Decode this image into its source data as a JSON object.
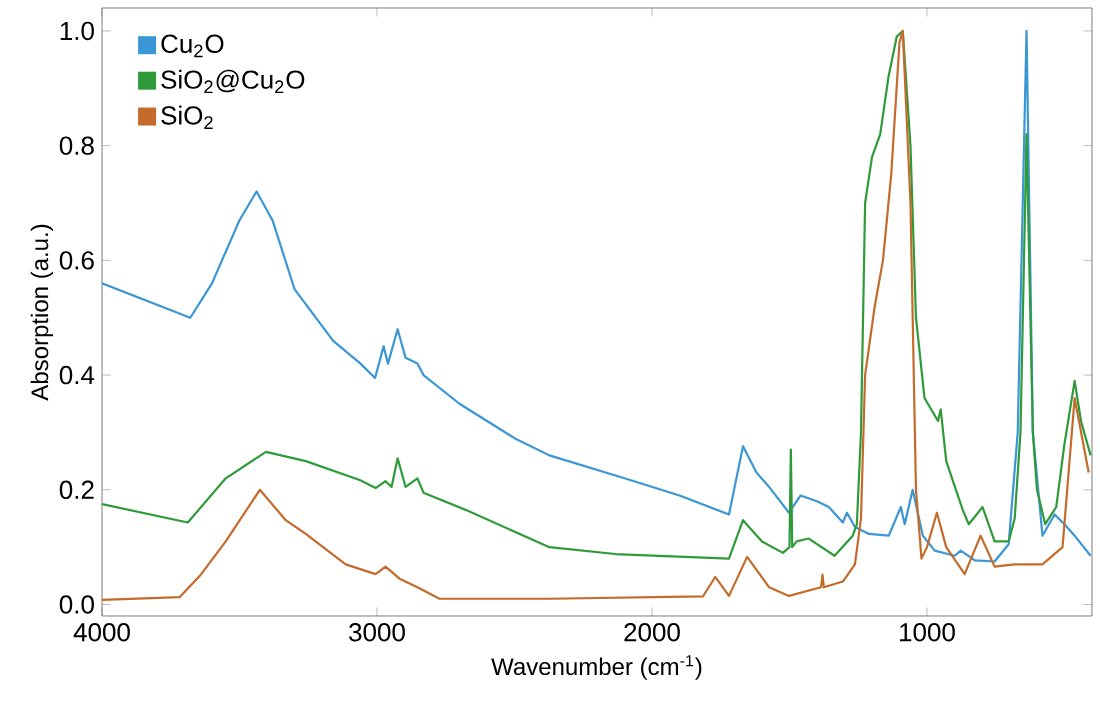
{
  "chart_data": {
    "type": "line",
    "xlabel": "Wavenumber (cm$^{-1}$)",
    "ylabel": "Absorption (a.u.)",
    "xlim": [
      4000,
      400
    ],
    "ylim": [
      -0.02,
      1.04
    ],
    "xticks": [
      4000,
      3000,
      2000,
      1000
    ],
    "yticks": [
      {
        "value": 0,
        "label": "0.0"
      },
      0.2,
      0.4,
      0.6,
      0.8,
      {
        "value": 1,
        "label": "1.0"
      }
    ],
    "grid": false,
    "legend": "top left",
    "marker": "none",
    "line_style": "solid",
    "series": [
      {
        "name": "Cu$_{2}$O",
        "color": "#3a96d4",
        "x": [
          4000,
          3679,
          3600,
          3500,
          3438,
          3380,
          3300,
          3160,
          3060,
          3007,
          2976,
          2960,
          2925,
          2896,
          2853,
          2831,
          2700,
          2500,
          2373,
          2100,
          1900,
          1720,
          1669,
          1620,
          1574,
          1502,
          1460,
          1400,
          1357,
          1306,
          1291,
          1262,
          1211,
          1139,
          1095,
          1081,
          1052,
          1015,
          972,
          899,
          877,
          826,
          754,
          703,
          670,
          638,
          615,
          580,
          536,
          500,
          463,
          430,
          405
        ],
        "values": [
          0.56,
          0.5,
          0.56,
          0.67,
          0.72,
          0.67,
          0.55,
          0.46,
          0.42,
          0.395,
          0.45,
          0.42,
          0.48,
          0.43,
          0.42,
          0.4,
          0.35,
          0.29,
          0.26,
          0.22,
          0.19,
          0.157,
          0.276,
          0.23,
          0.205,
          0.16,
          0.19,
          0.18,
          0.17,
          0.143,
          0.16,
          0.135,
          0.123,
          0.12,
          0.17,
          0.14,
          0.2,
          0.12,
          0.094,
          0.085,
          0.094,
          0.077,
          0.075,
          0.105,
          0.3,
          1.0,
          0.3,
          0.12,
          0.157,
          0.14,
          0.12,
          0.1,
          0.085
        ]
      },
      {
        "name": "SiO$_{2}$@Cu$_{2}$O",
        "color": "#2e9a3a",
        "x": [
          4000,
          3688,
          3550,
          3404,
          3259,
          3063,
          3005,
          2969,
          2947,
          2925,
          2896,
          2853,
          2831,
          2678,
          2373,
          2134,
          1720,
          1669,
          1600,
          1524,
          1500,
          1495,
          1490,
          1474,
          1430,
          1336,
          1270,
          1255,
          1240,
          1225,
          1200,
          1170,
          1140,
          1110,
          1088,
          1060,
          1040,
          1009,
          960,
          950,
          930,
          870,
          848,
          798,
          754,
          703,
          681,
          660,
          638,
          615,
          600,
          570,
          530,
          500,
          463,
          440,
          405
        ],
        "values": [
          0.175,
          0.143,
          0.22,
          0.266,
          0.25,
          0.217,
          0.203,
          0.215,
          0.205,
          0.255,
          0.205,
          0.22,
          0.195,
          0.165,
          0.1,
          0.088,
          0.08,
          0.147,
          0.11,
          0.09,
          0.1,
          0.27,
          0.1,
          0.11,
          0.115,
          0.085,
          0.12,
          0.14,
          0.3,
          0.7,
          0.78,
          0.82,
          0.92,
          0.99,
          1.0,
          0.8,
          0.5,
          0.36,
          0.32,
          0.34,
          0.25,
          0.165,
          0.14,
          0.17,
          0.11,
          0.11,
          0.15,
          0.3,
          0.82,
          0.3,
          0.2,
          0.14,
          0.17,
          0.28,
          0.39,
          0.32,
          0.26
        ]
      },
      {
        "name": "SiO$_{2}$",
        "color": "#c46b2c",
        "x": [
          4000,
          3717,
          3644,
          3550,
          3426,
          3332,
          3259,
          3114,
          3005,
          2969,
          2918,
          2853,
          2773,
          2373,
          1815,
          1770,
          1720,
          1654,
          1574,
          1502,
          1385,
          1380,
          1375,
          1306,
          1262,
          1240,
          1225,
          1190,
          1160,
          1130,
          1100,
          1088,
          1060,
          1040,
          1020,
          1000,
          964,
          930,
          863,
          805,
          754,
          681,
          580,
          507,
          463,
          412
        ],
        "values": [
          0.008,
          0.013,
          0.05,
          0.11,
          0.2,
          0.147,
          0.123,
          0.07,
          0.053,
          0.066,
          0.045,
          0.03,
          0.01,
          0.01,
          0.014,
          0.048,
          0.015,
          0.083,
          0.03,
          0.015,
          0.03,
          0.052,
          0.03,
          0.04,
          0.07,
          0.15,
          0.4,
          0.52,
          0.6,
          0.75,
          0.98,
          1.0,
          0.7,
          0.2,
          0.08,
          0.1,
          0.16,
          0.1,
          0.053,
          0.12,
          0.066,
          0.07,
          0.07,
          0.1,
          0.36,
          0.23
        ]
      }
    ]
  }
}
